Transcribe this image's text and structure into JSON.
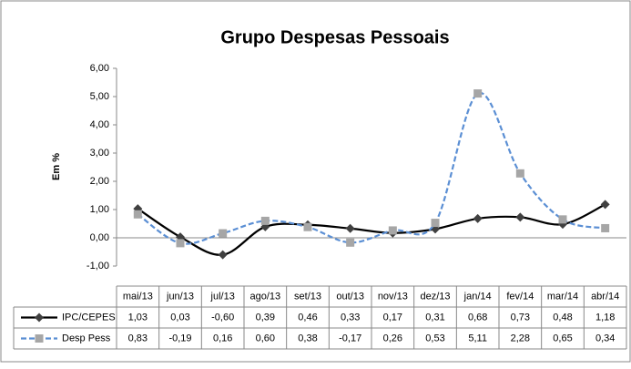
{
  "chart_data": {
    "type": "line",
    "title": "Grupo Despesas Pessoais",
    "y_label": "Em %",
    "categories": [
      "mai/13",
      "jun/13",
      "jul/13",
      "ago/13",
      "set/13",
      "out/13",
      "nov/13",
      "dez/13",
      "jan/14",
      "fev/14",
      "mar/14",
      "abr/14"
    ],
    "series": [
      {
        "name": "IPC/CEPES",
        "color": "#000000",
        "marker_color": "#404040",
        "marker": "diamond",
        "dashed": false,
        "smooth": true,
        "values": [
          1.03,
          0.03,
          -0.6,
          0.39,
          0.46,
          0.33,
          0.17,
          0.31,
          0.68,
          0.73,
          0.48,
          1.18
        ],
        "value_labels": [
          "1,03",
          "0,03",
          "-0,60",
          "0,39",
          "0,46",
          "0,33",
          "0,17",
          "0,31",
          "0,68",
          "0,73",
          "0,48",
          "1,18"
        ]
      },
      {
        "name": "Desp Pess",
        "color": "#5b8fd4",
        "marker_color": "#a6a6a6",
        "marker": "square",
        "dashed": true,
        "smooth": true,
        "values": [
          0.83,
          -0.19,
          0.16,
          0.6,
          0.38,
          -0.17,
          0.26,
          0.53,
          5.11,
          2.28,
          0.65,
          0.34
        ],
        "value_labels": [
          "0,83",
          "-0,19",
          "0,16",
          "0,60",
          "0,38",
          "-0,17",
          "0,26",
          "0,53",
          "5,11",
          "2,28",
          "0,65",
          "0,34"
        ]
      }
    ],
    "ylim": [
      -1,
      6
    ],
    "yticks": [
      {
        "value": -1,
        "label": "-1,00"
      },
      {
        "value": 0,
        "label": "0,00"
      },
      {
        "value": 1,
        "label": "1,00"
      },
      {
        "value": 2,
        "label": "2,00"
      },
      {
        "value": 3,
        "label": "3,00"
      },
      {
        "value": 4,
        "label": "4,00"
      },
      {
        "value": 5,
        "label": "5,00"
      },
      {
        "value": 6,
        "label": "6,00"
      }
    ],
    "grid": false,
    "data_table": true
  }
}
